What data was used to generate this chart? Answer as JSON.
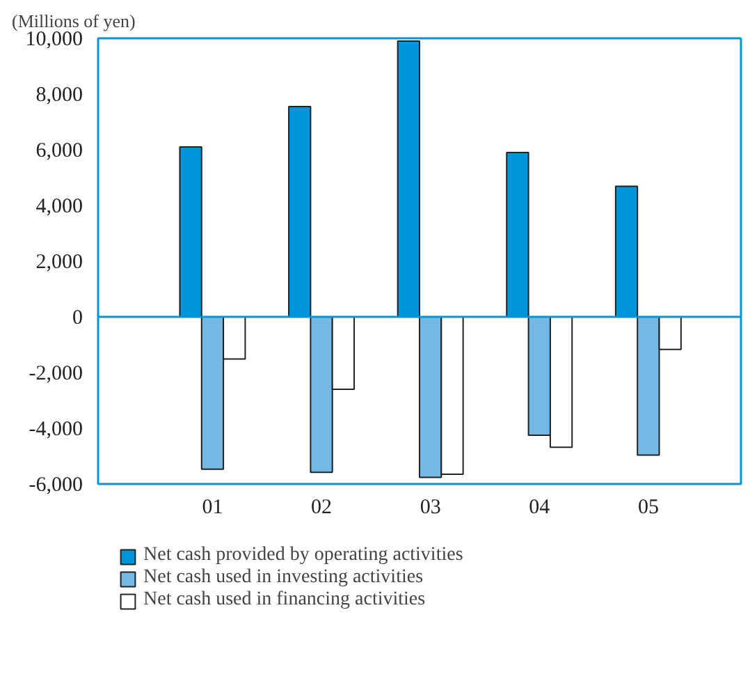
{
  "chart_data": {
    "type": "bar",
    "ylabel": "(Millions of yen)",
    "categories": [
      "01",
      "02",
      "03",
      "04",
      "05"
    ],
    "series": [
      {
        "name": "Net cash provided by operating activities",
        "color": "#0095d9",
        "values": [
          6100,
          7550,
          9900,
          5900,
          4690
        ]
      },
      {
        "name": "Net cash used in investing activities",
        "color": "#74b9e6",
        "values": [
          -5470,
          -5580,
          -5760,
          -4250,
          -4960
        ]
      },
      {
        "name": "Net cash used in financing activities",
        "color": "#ffffff",
        "values": [
          -1510,
          -2600,
          -5650,
          -4680,
          -1170
        ]
      }
    ],
    "ylim": [
      -6000,
      10000
    ],
    "yticks": [
      {
        "value": -6000,
        "label": "-6,000"
      },
      {
        "value": -4000,
        "label": "-4,000"
      },
      {
        "value": -2000,
        "label": "-2,000"
      },
      0,
      {
        "value": 2000,
        "label": "2,000"
      },
      {
        "value": 4000,
        "label": "4,000"
      },
      {
        "value": 6000,
        "label": "6,000"
      },
      {
        "value": 8000,
        "label": "8,000"
      },
      {
        "value": 10000,
        "label": "10,000"
      }
    ],
    "ref_lines": [
      {
        "axis": "y",
        "value": 0,
        "color": "#0095d9"
      }
    ],
    "grid": false,
    "legend": "bottom"
  }
}
